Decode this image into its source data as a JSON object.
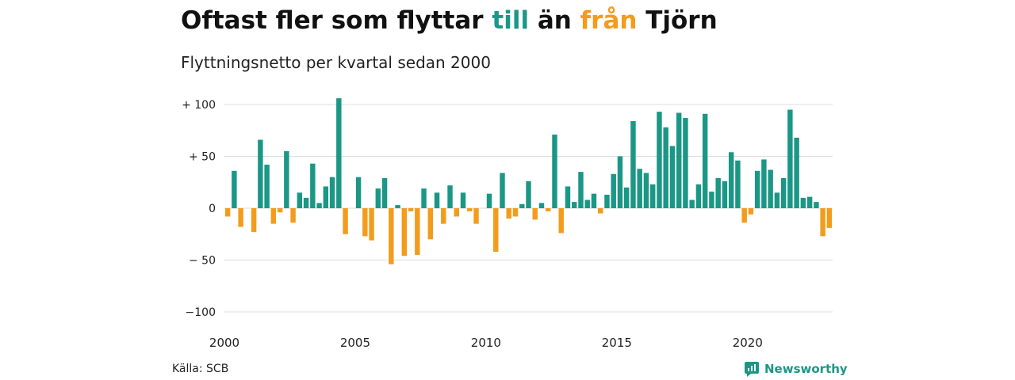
{
  "title": {
    "part1": "Oftast fler som flyttar ",
    "till": "till",
    "mid": " än ",
    "fran": "från",
    "end": " Tjörn"
  },
  "subtitle": "Flyttningsnetto per kvartal sedan 2000",
  "source": "Källa: SCB",
  "logo": {
    "text": "Newsworthy",
    "icon": "chart-bubble-icon"
  },
  "colors": {
    "positive": "#1b9786",
    "negative": "#f39c1c",
    "grid": "#dddddd"
  },
  "chart_data": {
    "type": "bar",
    "start": "2000 Q1",
    "frequency": "quarterly",
    "xticks": [
      "2000",
      "2005",
      "2010",
      "2015",
      "2020"
    ],
    "yticks": [
      "+ 100",
      "+  50",
      "0",
      "− 50",
      "−100"
    ],
    "ylim": [
      -100,
      100
    ],
    "values": [
      -8,
      36,
      -18,
      0,
      -23,
      66,
      42,
      -15,
      -4,
      55,
      -14,
      15,
      10,
      43,
      5,
      21,
      30,
      106,
      -25,
      0,
      30,
      -27,
      -31,
      19,
      29,
      -54,
      3,
      -46,
      -3,
      -45,
      19,
      -30,
      15,
      -15,
      22,
      -8,
      15,
      -3,
      -15,
      0,
      14,
      -42,
      34,
      -10,
      -8,
      4,
      26,
      -11,
      5,
      -3,
      71,
      -24,
      21,
      6,
      35,
      8,
      14,
      -5,
      13,
      33,
      50,
      20,
      84,
      38,
      34,
      23,
      93,
      78,
      60,
      92,
      87,
      8,
      23,
      91,
      16,
      29,
      26,
      54,
      46,
      -14,
      -6,
      36,
      47,
      37,
      15,
      29,
      95,
      68,
      10,
      11,
      6,
      -27,
      -19
    ]
  }
}
